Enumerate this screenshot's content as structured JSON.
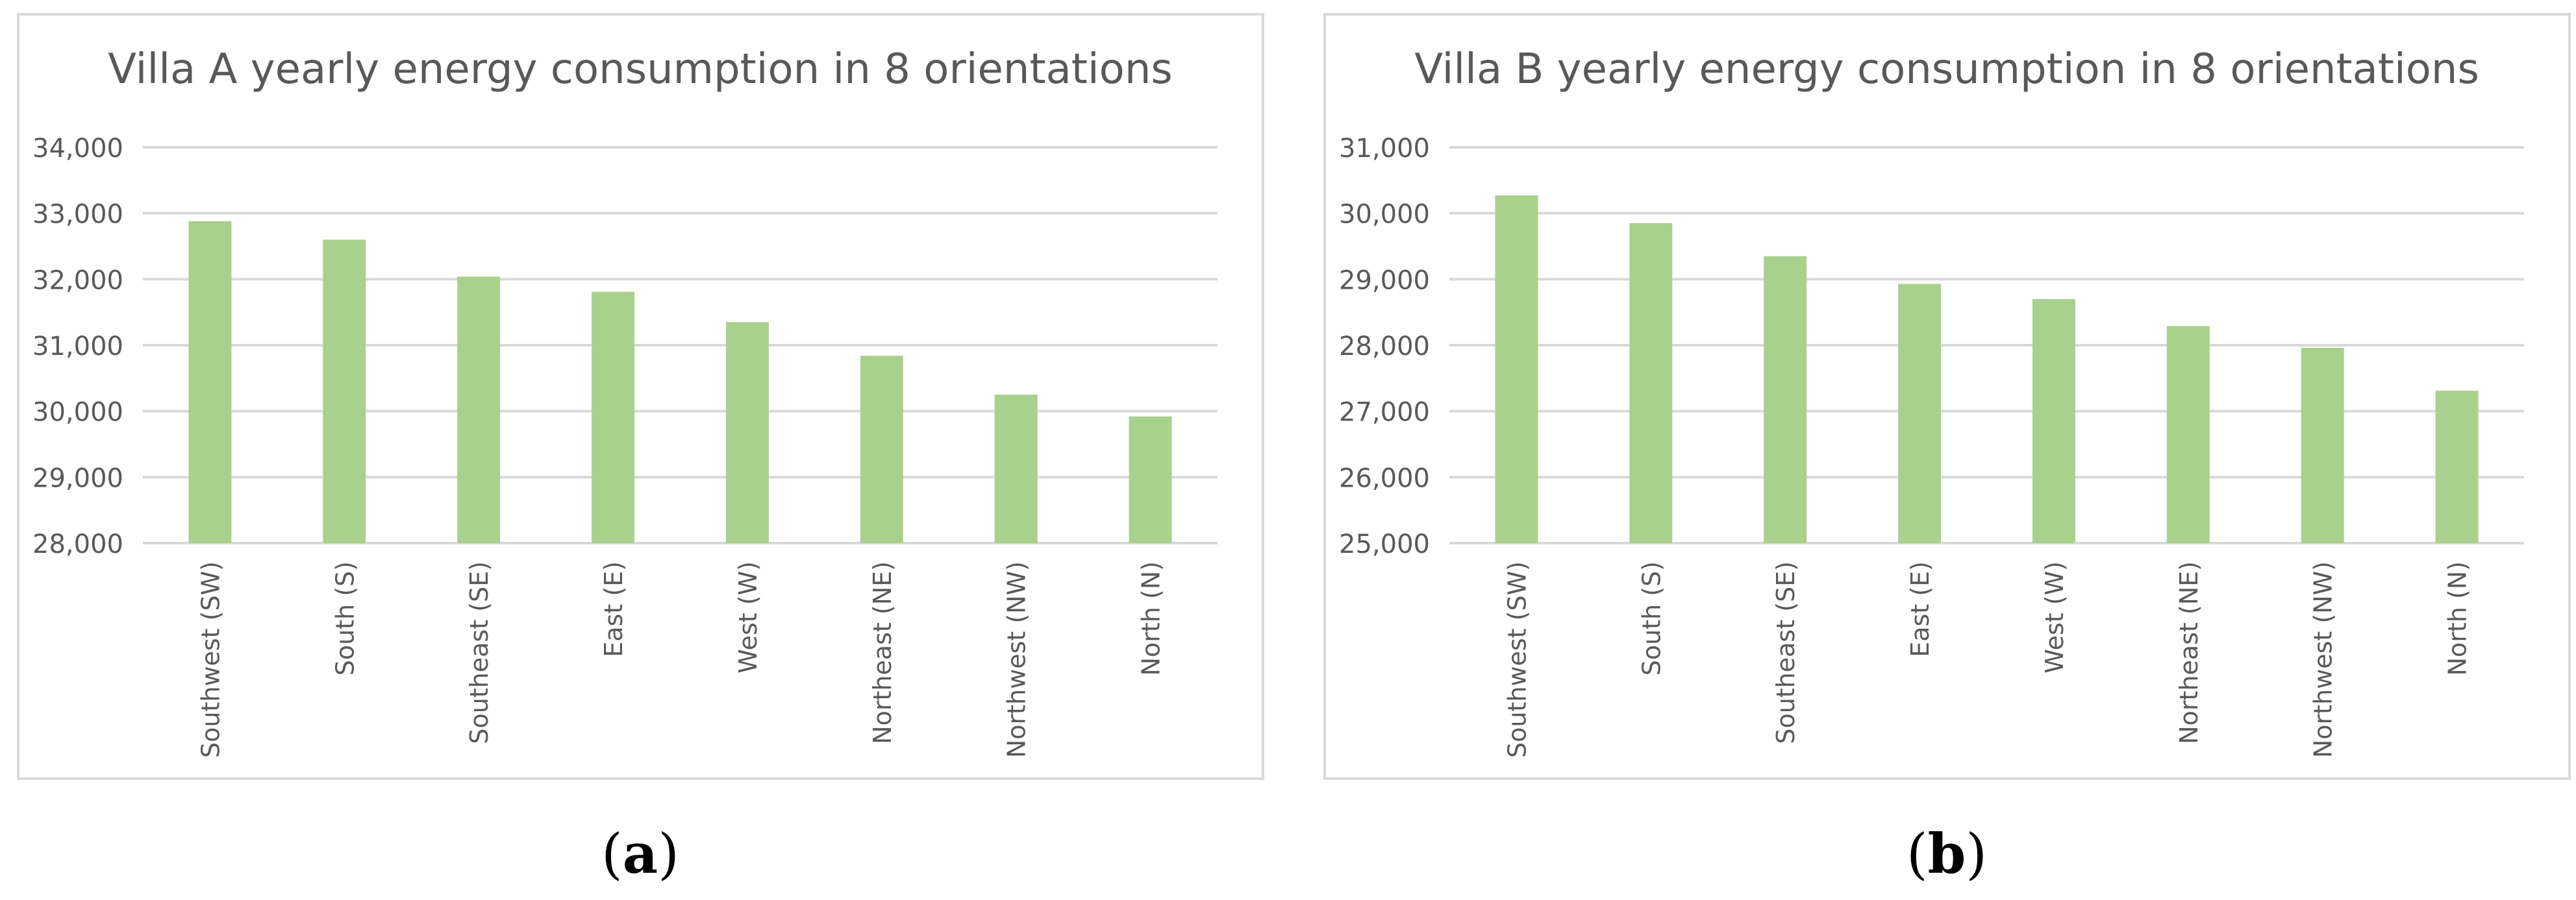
{
  "colors": {
    "bar": "#a9d18e",
    "grid": "#d9d9d9",
    "text": "#595959",
    "frame": "#d9d9d9"
  },
  "chart_data": [
    {
      "type": "bar",
      "title": "Villa A yearly energy consumption in 8 orientations",
      "panel_label": "(a)",
      "panel_letter": "a",
      "categories": [
        "Southwest (SW)",
        "South (S)",
        "Southeast (SE)",
        "East (E)",
        "West (W)",
        "Northeast (NE)",
        "Northwest (NW)",
        "North (N)"
      ],
      "values": [
        32880,
        32600,
        32040,
        31810,
        31350,
        30840,
        30250,
        29920
      ],
      "ylim": [
        28000,
        34000
      ],
      "yticks": [
        28000,
        29000,
        30000,
        31000,
        32000,
        33000,
        34000
      ],
      "ytick_labels": [
        "28,000",
        "29,000",
        "30,000",
        "31,000",
        "32,000",
        "33,000",
        "34,000"
      ],
      "xlabel": "",
      "ylabel": "",
      "grid": true,
      "legend": "none"
    },
    {
      "type": "bar",
      "title": "Villa B yearly energy consumption in 8 orientations",
      "panel_label": "(b)",
      "panel_letter": "b",
      "categories": [
        "Southwest (SW)",
        "South (S)",
        "Southeast (SE)",
        "East (E)",
        "West (W)",
        "Northeast (NE)",
        "Northwest (NW)",
        "North (N)"
      ],
      "values": [
        30270,
        29850,
        29350,
        28930,
        28700,
        28290,
        27960,
        27310
      ],
      "ylim": [
        25000,
        31000
      ],
      "yticks": [
        25000,
        26000,
        27000,
        28000,
        29000,
        30000,
        31000
      ],
      "ytick_labels": [
        "25,000",
        "26,000",
        "27,000",
        "28,000",
        "29,000",
        "30,000",
        "31,000"
      ],
      "xlabel": "",
      "ylabel": "",
      "grid": true,
      "legend": "none"
    }
  ]
}
